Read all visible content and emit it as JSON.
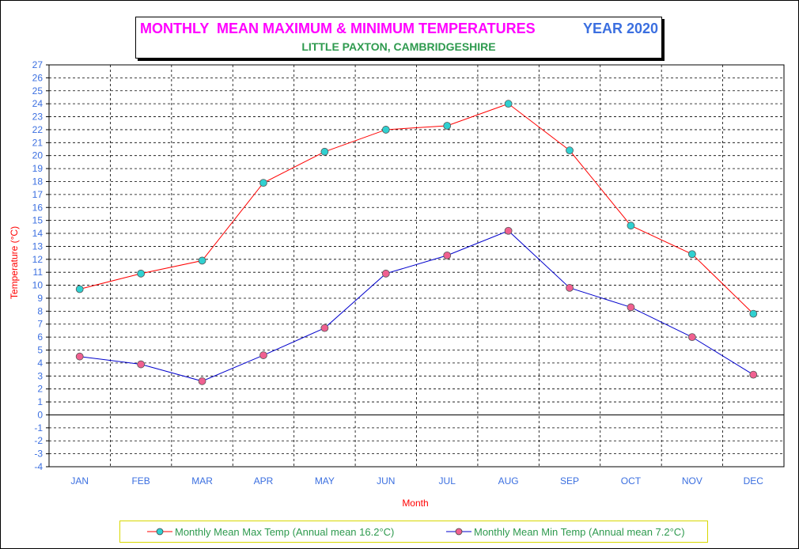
{
  "title": {
    "main": "MONTHLY  MEAN MAXIMUM & MINIMUM TEMPERATURES",
    "year": "YEAR 2020",
    "subtitle": "LITTLE PAXTON, CAMBRIDGESHIRE"
  },
  "colors": {
    "title_main": "#ff00ff",
    "title_year": "#3b6fe0",
    "subtitle": "#2e9a4e",
    "axis_text": "#3b6fe0",
    "axis_title": "#ff0000",
    "max_line": "#ff0000",
    "max_marker": "#30d0d0",
    "min_line": "#0000cc",
    "min_marker": "#f06090",
    "legend_text": "#2e9a4e",
    "legend_border": "#d8d800"
  },
  "chart_data": {
    "type": "line",
    "xlabel": "Month",
    "ylabel": "Temperature (°C)",
    "ylim": [
      -4,
      27
    ],
    "yticks": [
      -4,
      -3,
      -2,
      -1,
      0,
      1,
      2,
      3,
      4,
      5,
      6,
      7,
      8,
      9,
      10,
      11,
      12,
      13,
      14,
      15,
      16,
      17,
      18,
      19,
      20,
      21,
      22,
      23,
      24,
      25,
      26,
      27
    ],
    "grid": true,
    "legend_position": "bottom",
    "categories": [
      "JAN",
      "FEB",
      "MAR",
      "APR",
      "MAY",
      "JUN",
      "JUL",
      "AUG",
      "SEP",
      "OCT",
      "NOV",
      "DEC"
    ],
    "series": [
      {
        "name": "Monthly Mean Max Temp (Annual mean 16.2°C)",
        "values": [
          9.7,
          10.9,
          11.9,
          17.9,
          20.3,
          22.0,
          22.3,
          24.0,
          20.4,
          14.6,
          12.4,
          7.8
        ],
        "line_color": "#ff0000",
        "marker_color": "#30d0d0"
      },
      {
        "name": "Monthly Mean Min Temp (Annual mean 7.2°C)",
        "values": [
          4.5,
          3.9,
          2.6,
          4.6,
          6.7,
          10.9,
          12.3,
          14.2,
          9.8,
          8.3,
          6.0,
          3.1
        ],
        "line_color": "#0000cc",
        "marker_color": "#f06090"
      }
    ]
  }
}
